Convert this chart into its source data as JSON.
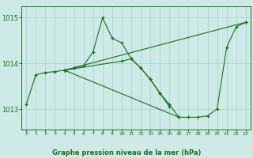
{
  "bg_color": "#ceeae7",
  "grid_color": "#b0d8d0",
  "line_color": "#1a6e1a",
  "marker_color": "#1a6e1a",
  "title": "Graphe pression niveau de la mer (hPa)",
  "xlim": [
    -0.5,
    23.5
  ],
  "ylim": [
    1012.55,
    1015.25
  ],
  "yticks": [
    1013,
    1014,
    1015
  ],
  "xticks": [
    0,
    1,
    2,
    3,
    4,
    5,
    6,
    7,
    8,
    9,
    10,
    11,
    12,
    13,
    14,
    15,
    16,
    17,
    18,
    19,
    20,
    21,
    22,
    23
  ],
  "series": [
    {
      "x": [
        0,
        1,
        2,
        3,
        4,
        5,
        6,
        7,
        8,
        9,
        10,
        11,
        12,
        13,
        14,
        15
      ],
      "y": [
        1013.1,
        1013.75,
        1013.8,
        1013.82,
        1013.85,
        1013.9,
        1013.95,
        1014.25,
        1015.0,
        1014.55,
        1014.45,
        1014.1,
        1013.9,
        1013.65,
        1013.35,
        1013.05
      ]
    },
    {
      "x": [
        4,
        10,
        11,
        12,
        13,
        14,
        15,
        16,
        17,
        18,
        19,
        20,
        21,
        22,
        23
      ],
      "y": [
        1013.85,
        1014.05,
        1014.1,
        1013.9,
        1013.65,
        1013.35,
        1013.1,
        1012.82,
        1012.82,
        1012.82,
        1012.85,
        1013.0,
        1014.35,
        1014.8,
        1014.9
      ]
    },
    {
      "x": [
        4,
        23
      ],
      "y": [
        1013.85,
        1014.9
      ]
    },
    {
      "x": [
        4,
        16
      ],
      "y": [
        1013.85,
        1012.82
      ]
    }
  ]
}
